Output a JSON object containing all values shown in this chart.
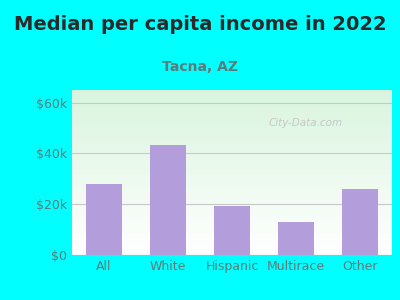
{
  "title": "Median per capita income in 2022",
  "subtitle": "Tacna, AZ",
  "categories": [
    "All",
    "White",
    "Hispanic",
    "Multirace",
    "Other"
  ],
  "values": [
    28000,
    43500,
    19500,
    13000,
    26000
  ],
  "bar_color": "#b39ddb",
  "title_color": "#2a2a2a",
  "subtitle_color": "#5c7a7a",
  "background_outer": "#00ffff",
  "ytick_labels": [
    "$0",
    "$20k",
    "$40k",
    "$60k"
  ],
  "yticks": [
    0,
    20000,
    40000,
    60000
  ],
  "ylim": [
    0,
    65000
  ],
  "watermark": "City-Data.com",
  "tick_color": "#5c7a7a",
  "grid_color": "#c8c8c8",
  "title_fontsize": 14,
  "subtitle_fontsize": 10,
  "tick_fontsize": 9
}
